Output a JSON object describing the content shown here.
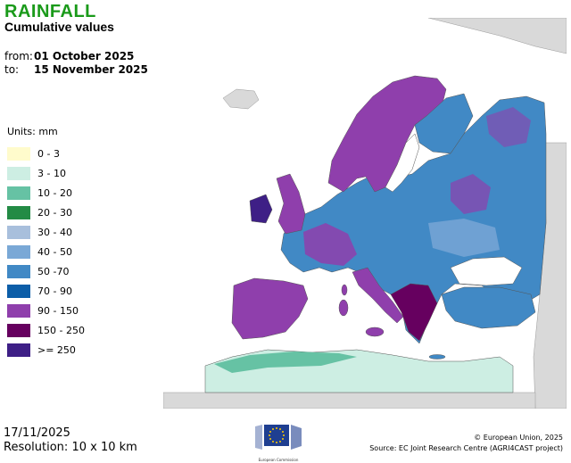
{
  "header": {
    "title": "RAINFALL",
    "subtitle": "Cumulative values",
    "from_label": "from:",
    "from_value": "01 October 2025",
    "to_label": "to:",
    "to_value": "15 November 2025"
  },
  "legend": {
    "units": "Units: mm",
    "items": [
      {
        "label": "0 - 3",
        "color": "#fffbcc"
      },
      {
        "label": "3 - 10",
        "color": "#cdeee3"
      },
      {
        "label": "10 - 20",
        "color": "#66c2a4"
      },
      {
        "label": "20 - 30",
        "color": "#238b45"
      },
      {
        "label": "30 - 40",
        "color": "#a8bfdc"
      },
      {
        "label": "40 - 50",
        "color": "#7aa8d6"
      },
      {
        "label": "50 -70",
        "color": "#4189c5"
      },
      {
        "label": "70 - 90",
        "color": "#0c5ea8"
      },
      {
        "label": "90 - 150",
        "color": "#8f3fac"
      },
      {
        "label": "150 - 250",
        "color": "#66005f"
      },
      {
        "label": ">= 250",
        "color": "#3e1f86"
      }
    ]
  },
  "footer": {
    "date": "17/11/2025",
    "resolution": "Resolution: 10 x 10 km",
    "copyright": "© European Union, 2025",
    "source": "Source: EC Joint Research Centre (AGRI4CAST project)",
    "logo_caption": "European Commission"
  },
  "colors": {
    "title": "#1a9a1a",
    "sea": "#ffffff",
    "outside_land": "#d9d9d9"
  }
}
